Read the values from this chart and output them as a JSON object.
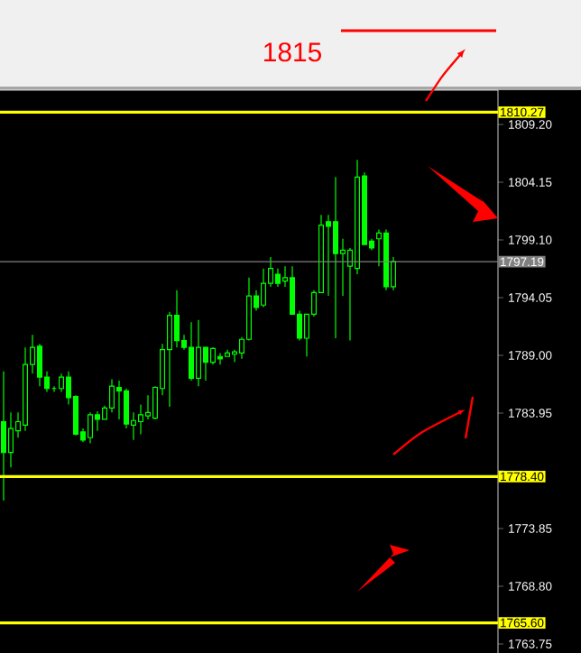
{
  "chart_data": {
    "type": "candlestick",
    "color": "#00ff00",
    "categories": [
      null,
      null,
      null,
      null,
      null,
      null,
      null,
      null,
      null,
      null,
      null,
      null,
      null,
      null,
      null,
      null,
      null,
      null,
      null,
      null,
      null,
      null,
      null,
      null,
      null,
      null,
      null,
      null,
      null,
      null,
      null,
      null,
      null,
      null,
      null,
      null,
      null,
      null,
      null,
      null,
      null,
      null,
      null,
      null,
      null,
      null,
      null,
      null,
      null,
      null,
      null,
      null,
      null,
      null,
      null,
      null,
      null,
      null,
      null,
      null,
      null,
      null,
      null,
      null,
      null,
      null,
      null,
      null,
      null
    ],
    "ohlc": [
      [
        1783.2,
        1787.6,
        1776.3,
        1780.5
      ],
      [
        1780.5,
        1784.0,
        1779.2,
        1782.6
      ],
      [
        1782.4,
        1784.0,
        1781.8,
        1783.2
      ],
      [
        1782.9,
        1789.7,
        1782.4,
        1788.2
      ],
      [
        1788.2,
        1790.8,
        1787.4,
        1789.7
      ],
      [
        1789.8,
        1790.0,
        1786.3,
        1787.1
      ],
      [
        1787.1,
        1787.6,
        1785.8,
        1786.1
      ],
      [
        1786.1,
        1786.3,
        1785.8,
        1786.1
      ],
      [
        1786.1,
        1787.4,
        1785.8,
        1787.1
      ],
      [
        1787.1,
        1787.6,
        1784.7,
        1785.3
      ],
      [
        1785.4,
        1785.5,
        1782.0,
        1782.1
      ],
      [
        1782.3,
        1782.6,
        1781.4,
        1781.6
      ],
      [
        1781.8,
        1784.0,
        1781.3,
        1783.8
      ],
      [
        1783.8,
        1784.1,
        1782.4,
        1783.4
      ],
      [
        1783.4,
        1784.6,
        1783.4,
        1784.4
      ],
      [
        1784.4,
        1786.9,
        1784.0,
        1786.3
      ],
      [
        1786.2,
        1786.8,
        1783.4,
        1785.9
      ],
      [
        1785.9,
        1786.1,
        1782.6,
        1783.0
      ],
      [
        1782.9,
        1784.0,
        1781.6,
        1783.3
      ],
      [
        1783.2,
        1784.7,
        1782.1,
        1783.8
      ],
      [
        1783.7,
        1785.5,
        1783.4,
        1784.0
      ],
      [
        1783.5,
        1786.3,
        1783.4,
        1786.2
      ],
      [
        1786.1,
        1790.0,
        1785.5,
        1789.5
      ],
      [
        1789.5,
        1792.8,
        1784.5,
        1792.5
      ],
      [
        1792.5,
        1794.7,
        1789.7,
        1790.3
      ],
      [
        1790.3,
        1790.8,
        1789.5,
        1789.7
      ],
      [
        1789.7,
        1791.9,
        1786.8,
        1787.0
      ],
      [
        1787.0,
        1792.1,
        1786.3,
        1789.7
      ],
      [
        1789.7,
        1789.7,
        1786.8,
        1788.4
      ],
      [
        1788.4,
        1789.7,
        1788.2,
        1789.6
      ],
      [
        1788.9,
        1789.2,
        1788.2,
        1788.7
      ],
      [
        1788.9,
        1789.5,
        1788.9,
        1789.2
      ],
      [
        1789.1,
        1789.5,
        1788.4,
        1789.3
      ],
      [
        1789.2,
        1790.6,
        1788.7,
        1790.4
      ],
      [
        1790.4,
        1795.8,
        1790.3,
        1794.2
      ],
      [
        1794.2,
        1794.7,
        1792.9,
        1793.2
      ],
      [
        1793.4,
        1796.6,
        1793.2,
        1795.3
      ],
      [
        1795.3,
        1797.6,
        1795.0,
        1796.6
      ],
      [
        1796.1,
        1796.6,
        1795.0,
        1795.3
      ],
      [
        1795.5,
        1796.8,
        1795.0,
        1795.8
      ],
      [
        1795.8,
        1796.8,
        1792.6,
        1792.6
      ],
      [
        1792.6,
        1792.9,
        1790.3,
        1790.5
      ],
      [
        1790.5,
        1792.6,
        1788.9,
        1792.6
      ],
      [
        1792.6,
        1794.7,
        1792.4,
        1794.5
      ],
      [
        1794.5,
        1801.3,
        1794.5,
        1800.4
      ],
      [
        1800.7,
        1801.3,
        1794.2,
        1800.3
      ],
      [
        1800.7,
        1804.6,
        1790.5,
        1797.9
      ],
      [
        1797.9,
        1799.2,
        1794.2,
        1798.2
      ],
      [
        1796.8,
        1798.4,
        1790.3,
        1798.2
      ],
      [
        1796.6,
        1806.1,
        1796.1,
        1804.6
      ],
      [
        1804.7,
        1805.0,
        1798.7,
        1798.7
      ],
      [
        1799.0,
        1799.2,
        1798.2,
        1798.4
      ],
      [
        1799.2,
        1800.0,
        1796.8,
        1799.7
      ],
      [
        1799.7,
        1800.0,
        1794.7,
        1795.0
      ],
      [
        1795.0,
        1797.6,
        1794.7,
        1797.2
      ],
      null,
      null,
      null,
      null,
      null,
      null,
      null,
      null,
      null,
      null,
      null,
      null,
      null,
      null
    ],
    "ylim": [
      1762.96,
      1812.2
    ],
    "yticks": [
      {
        "value": 1809.2,
        "label": "1809.20"
      },
      {
        "value": 1804.15,
        "label": "1804.15"
      },
      {
        "value": 1799.1,
        "label": "1799.10"
      },
      {
        "value": 1794.05,
        "label": "1794.05"
      },
      {
        "value": 1789.0,
        "label": "1789.00"
      },
      {
        "value": 1783.95,
        "label": "1783.95"
      },
      {
        "value": 1778.9,
        "label": null
      },
      {
        "value": 1773.85,
        "label": "1773.85"
      },
      {
        "value": 1768.8,
        "label": "1768.80"
      },
      {
        "value": 1763.75,
        "label": "1763.75"
      }
    ],
    "ref_lines": [
      {
        "axis": "y",
        "value": 1810.27,
        "label": "1810.27",
        "color": "#ffff00"
      },
      {
        "axis": "y",
        "value": 1778.4,
        "label": "1778.40",
        "color": "#ffff00"
      },
      {
        "axis": "y",
        "value": 1765.6,
        "label": "1765.60",
        "color": "#ffff00"
      },
      {
        "axis": "y",
        "value": 1797.19,
        "label": "1797.19",
        "color": "#808080"
      }
    ],
    "annotations": [
      "1815"
    ]
  }
}
